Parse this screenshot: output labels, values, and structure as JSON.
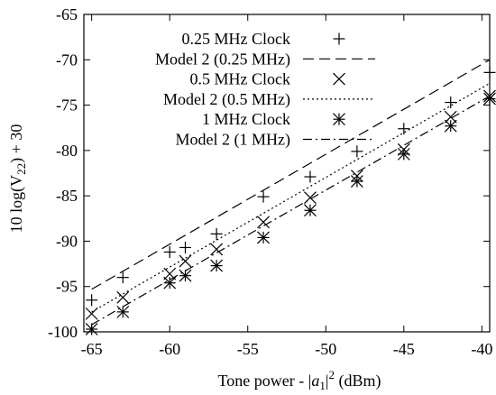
{
  "chart_data": {
    "type": "scatter",
    "title": "",
    "xlabel_parts": [
      "Tone power - |",
      "a",
      "1",
      "|",
      "2",
      " (dBm)"
    ],
    "ylabel_parts": [
      "10 log(V",
      "22",
      ") + 30"
    ],
    "xlim": [
      -65.5,
      -39.5
    ],
    "ylim": [
      -100,
      -65
    ],
    "xticks": [
      -65,
      -60,
      -55,
      -50,
      -45,
      -40
    ],
    "yticks": [
      -100,
      -95,
      -90,
      -85,
      -80,
      -75,
      -70,
      -65
    ],
    "xtick_labels": [
      "-65",
      "-60",
      "-55",
      "-50",
      "-45",
      "-40"
    ],
    "ytick_labels": [
      "-100",
      "-95",
      "-90",
      "-85",
      "-80",
      "-75",
      "-70",
      "-65"
    ],
    "grid": false,
    "legend_position": "top-left",
    "series": [
      {
        "name": "0.25 MHz Clock",
        "kind": "points",
        "marker": "plus",
        "x": [
          -65,
          -63,
          -60,
          -59,
          -57,
          -54,
          -51,
          -48,
          -45,
          -42,
          -39.5
        ],
        "y": [
          -96.5,
          -94,
          -91.2,
          -90.7,
          -89.2,
          -85.1,
          -82.9,
          -80.1,
          -77.6,
          -74.7,
          -71.4
        ]
      },
      {
        "name": "Model 2 (0.25 MHz)",
        "kind": "line",
        "dash": "12,6",
        "x": [
          -65,
          -39.5
        ],
        "y": [
          -95.3,
          -70
        ]
      },
      {
        "name": "0.5 MHz Clock",
        "kind": "points",
        "marker": "cross",
        "x": [
          -65,
          -63,
          -60,
          -59,
          -57,
          -54,
          -51,
          -48,
          -45,
          -42,
          -39.5
        ],
        "y": [
          -98,
          -96.2,
          -93.6,
          -92.2,
          -90.9,
          -87.9,
          -85.2,
          -82.8,
          -79.9,
          -76.3,
          -74
        ]
      },
      {
        "name": "Model 2 (0.5 MHz)",
        "kind": "line",
        "dash": "2,3",
        "x": [
          -65,
          -39.5
        ],
        "y": [
          -97.8,
          -72.6
        ]
      },
      {
        "name": "1 MHz Clock",
        "kind": "points",
        "marker": "asterisk",
        "x": [
          -65,
          -63,
          -60,
          -59,
          -57,
          -54,
          -51,
          -48,
          -45,
          -42,
          -39.5
        ],
        "y": [
          -99.7,
          -97.8,
          -94.6,
          -93.8,
          -92.7,
          -89.6,
          -86.6,
          -83.4,
          -80.4,
          -77.3,
          -74.3
        ]
      },
      {
        "name": "Model 2 (1 MHz)",
        "kind": "line",
        "dash": "10,4,2,4",
        "x": [
          -65,
          -39.5
        ],
        "y": [
          -99.2,
          -74
        ]
      }
    ]
  }
}
